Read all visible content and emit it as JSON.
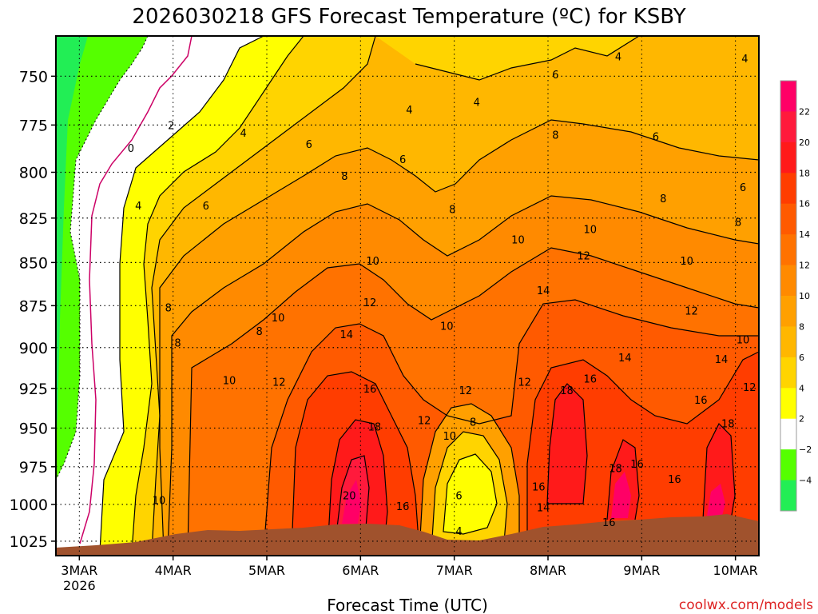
{
  "chart_data": {
    "type": "heatmap",
    "title": "2026030218 GFS Forecast Temperature (ºC) for KSBY",
    "xlabel": "Forecast Time (UTC)",
    "ylabel": "",
    "credit": "coolwx.com/models",
    "x_ticks": [
      {
        "day": 3,
        "label": "3MAR",
        "sublabel": "2026"
      },
      {
        "day": 4,
        "label": "4MAR"
      },
      {
        "day": 5,
        "label": "5MAR"
      },
      {
        "day": 6,
        "label": "6MAR"
      },
      {
        "day": 7,
        "label": "7MAR"
      },
      {
        "day": 8,
        "label": "8MAR"
      },
      {
        "day": 9,
        "label": "9MAR"
      },
      {
        "day": 10,
        "label": "10MAR"
      }
    ],
    "x_range_days": [
      2.75,
      10.25
    ],
    "y_ticks": [
      750,
      775,
      800,
      825,
      850,
      875,
      900,
      925,
      950,
      975,
      1000,
      1025
    ],
    "y_range_hpa": [
      730,
      1035
    ],
    "y_scale": "log-pressure",
    "grid": true,
    "colorbar": {
      "ticks": [
        22,
        20,
        18,
        16,
        14,
        12,
        10,
        8,
        6,
        4,
        2,
        -2,
        -4
      ],
      "bins": [
        {
          "lo": 22,
          "hi": 24,
          "color": "#ff0066"
        },
        {
          "lo": 20,
          "hi": 22,
          "color": "#ff1a3c"
        },
        {
          "lo": 18,
          "hi": 20,
          "color": "#ff1a1a"
        },
        {
          "lo": 16,
          "hi": 18,
          "color": "#ff3d00"
        },
        {
          "lo": 14,
          "hi": 16,
          "color": "#ff5a00"
        },
        {
          "lo": 12,
          "hi": 14,
          "color": "#ff7200"
        },
        {
          "lo": 10,
          "hi": 12,
          "color": "#ff8a00"
        },
        {
          "lo": 8,
          "hi": 10,
          "color": "#ffa000"
        },
        {
          "lo": 6,
          "hi": 8,
          "color": "#ffb700"
        },
        {
          "lo": 4,
          "hi": 6,
          "color": "#ffd400"
        },
        {
          "lo": 2,
          "hi": 4,
          "color": "#ffff00"
        },
        {
          "lo": -2,
          "hi": 2,
          "color": "#ffffff"
        },
        {
          "lo": -4,
          "hi": -2,
          "color": "#55ff00"
        },
        {
          "lo": -6,
          "hi": -4,
          "color": "#22ee55"
        }
      ]
    },
    "contour_labels": [
      {
        "day": 3.55,
        "p": 787,
        "text": "0"
      },
      {
        "day": 3.98,
        "p": 775,
        "text": "2"
      },
      {
        "day": 3.63,
        "p": 818,
        "text": "4"
      },
      {
        "day": 4.75,
        "p": 779,
        "text": "4"
      },
      {
        "day": 6.52,
        "p": 767,
        "text": "4"
      },
      {
        "day": 7.24,
        "p": 763,
        "text": "4"
      },
      {
        "day": 8.75,
        "p": 740,
        "text": "4"
      },
      {
        "day": 10.1,
        "p": 741,
        "text": "4"
      },
      {
        "day": 4.35,
        "p": 818,
        "text": "6"
      },
      {
        "day": 5.45,
        "p": 785,
        "text": "6"
      },
      {
        "day": 6.45,
        "p": 793,
        "text": "6"
      },
      {
        "day": 8.08,
        "p": 749,
        "text": "6"
      },
      {
        "day": 9.15,
        "p": 781,
        "text": "6"
      },
      {
        "day": 10.08,
        "p": 808,
        "text": "6"
      },
      {
        "day": 7.05,
        "p": 994,
        "text": "6"
      },
      {
        "day": 3.95,
        "p": 876,
        "text": "8"
      },
      {
        "day": 4.92,
        "p": 890,
        "text": "8"
      },
      {
        "day": 5.83,
        "p": 802,
        "text": "8"
      },
      {
        "day": 6.98,
        "p": 820,
        "text": "8"
      },
      {
        "day": 8.08,
        "p": 780,
        "text": "8"
      },
      {
        "day": 9.23,
        "p": 814,
        "text": "8"
      },
      {
        "day": 10.03,
        "p": 827,
        "text": "8"
      },
      {
        "day": 7.2,
        "p": 946,
        "text": "8"
      },
      {
        "day": 4.05,
        "p": 897,
        "text": "8"
      },
      {
        "day": 5.12,
        "p": 882,
        "text": "10"
      },
      {
        "day": 6.13,
        "p": 849,
        "text": "10"
      },
      {
        "day": 6.92,
        "p": 887,
        "text": "10"
      },
      {
        "day": 7.68,
        "p": 837,
        "text": "10"
      },
      {
        "day": 8.45,
        "p": 831,
        "text": "10"
      },
      {
        "day": 9.48,
        "p": 849,
        "text": "10"
      },
      {
        "day": 10.08,
        "p": 895,
        "text": "10"
      },
      {
        "day": 4.6,
        "p": 920,
        "text": "10"
      },
      {
        "day": 3.85,
        "p": 997,
        "text": "10"
      },
      {
        "day": 6.95,
        "p": 955,
        "text": "10"
      },
      {
        "day": 5.13,
        "p": 921,
        "text": "12"
      },
      {
        "day": 6.1,
        "p": 873,
        "text": "12"
      },
      {
        "day": 7.12,
        "p": 926,
        "text": "12"
      },
      {
        "day": 6.68,
        "p": 945,
        "text": "12"
      },
      {
        "day": 7.75,
        "p": 921,
        "text": "12"
      },
      {
        "day": 8.38,
        "p": 846,
        "text": "12"
      },
      {
        "day": 9.53,
        "p": 878,
        "text": "12"
      },
      {
        "day": 10.15,
        "p": 924,
        "text": "12"
      },
      {
        "day": 5.85,
        "p": 892,
        "text": "14"
      },
      {
        "day": 7.95,
        "p": 866,
        "text": "14"
      },
      {
        "day": 8.82,
        "p": 906,
        "text": "14"
      },
      {
        "day": 9.85,
        "p": 907,
        "text": "14"
      },
      {
        "day": 7.95,
        "p": 1002,
        "text": "14"
      },
      {
        "day": 6.1,
        "p": 925,
        "text": "16"
      },
      {
        "day": 8.45,
        "p": 919,
        "text": "16"
      },
      {
        "day": 9.63,
        "p": 932,
        "text": "16"
      },
      {
        "day": 8.95,
        "p": 973,
        "text": "16"
      },
      {
        "day": 9.35,
        "p": 983,
        "text": "16"
      },
      {
        "day": 7.9,
        "p": 988,
        "text": "16"
      },
      {
        "day": 8.65,
        "p": 1012,
        "text": "16"
      },
      {
        "day": 6.45,
        "p": 1001,
        "text": "16"
      },
      {
        "day": 6.15,
        "p": 949,
        "text": "18"
      },
      {
        "day": 8.2,
        "p": 926,
        "text": "18"
      },
      {
        "day": 8.72,
        "p": 976,
        "text": "18"
      },
      {
        "day": 9.92,
        "p": 947,
        "text": "18"
      },
      {
        "day": 5.88,
        "p": 994,
        "text": "20"
      },
      {
        "day": 7.05,
        "p": 1018,
        "text": "4"
      }
    ]
  }
}
